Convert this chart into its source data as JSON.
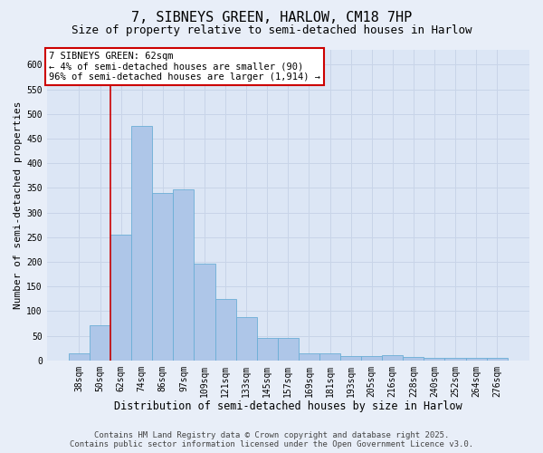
{
  "title": "7, SIBNEYS GREEN, HARLOW, CM18 7HP",
  "subtitle": "Size of property relative to semi-detached houses in Harlow",
  "xlabel": "Distribution of semi-detached houses by size in Harlow",
  "ylabel": "Number of semi-detached properties",
  "categories": [
    "38sqm",
    "50sqm",
    "62sqm",
    "74sqm",
    "86sqm",
    "97sqm",
    "109sqm",
    "121sqm",
    "133sqm",
    "145sqm",
    "157sqm",
    "169sqm",
    "181sqm",
    "193sqm",
    "205sqm",
    "216sqm",
    "228sqm",
    "240sqm",
    "252sqm",
    "264sqm",
    "276sqm"
  ],
  "values": [
    15,
    72,
    255,
    475,
    340,
    347,
    197,
    125,
    88,
    45,
    45,
    15,
    15,
    8,
    8,
    10,
    7,
    5,
    5,
    5,
    5
  ],
  "bar_color": "#aec6e8",
  "bar_edge_color": "#6baed6",
  "highlight_color": "#cc0000",
  "annotation_text": "7 SIBNEYS GREEN: 62sqm\n← 4% of semi-detached houses are smaller (90)\n96% of semi-detached houses are larger (1,914) →",
  "annotation_box_color": "#ffffff",
  "annotation_box_edge_color": "#cc0000",
  "ylim": [
    0,
    630
  ],
  "yticks": [
    0,
    50,
    100,
    150,
    200,
    250,
    300,
    350,
    400,
    450,
    500,
    550,
    600
  ],
  "bg_color": "#e8eef8",
  "plot_bg_color": "#dce6f5",
  "grid_color": "#c8d4e8",
  "footer_line1": "Contains HM Land Registry data © Crown copyright and database right 2025.",
  "footer_line2": "Contains public sector information licensed under the Open Government Licence v3.0.",
  "title_fontsize": 11,
  "subtitle_fontsize": 9,
  "xlabel_fontsize": 8.5,
  "ylabel_fontsize": 8,
  "tick_fontsize": 7,
  "footer_fontsize": 6.5,
  "annotation_fontsize": 7.5,
  "vline_index": 2
}
